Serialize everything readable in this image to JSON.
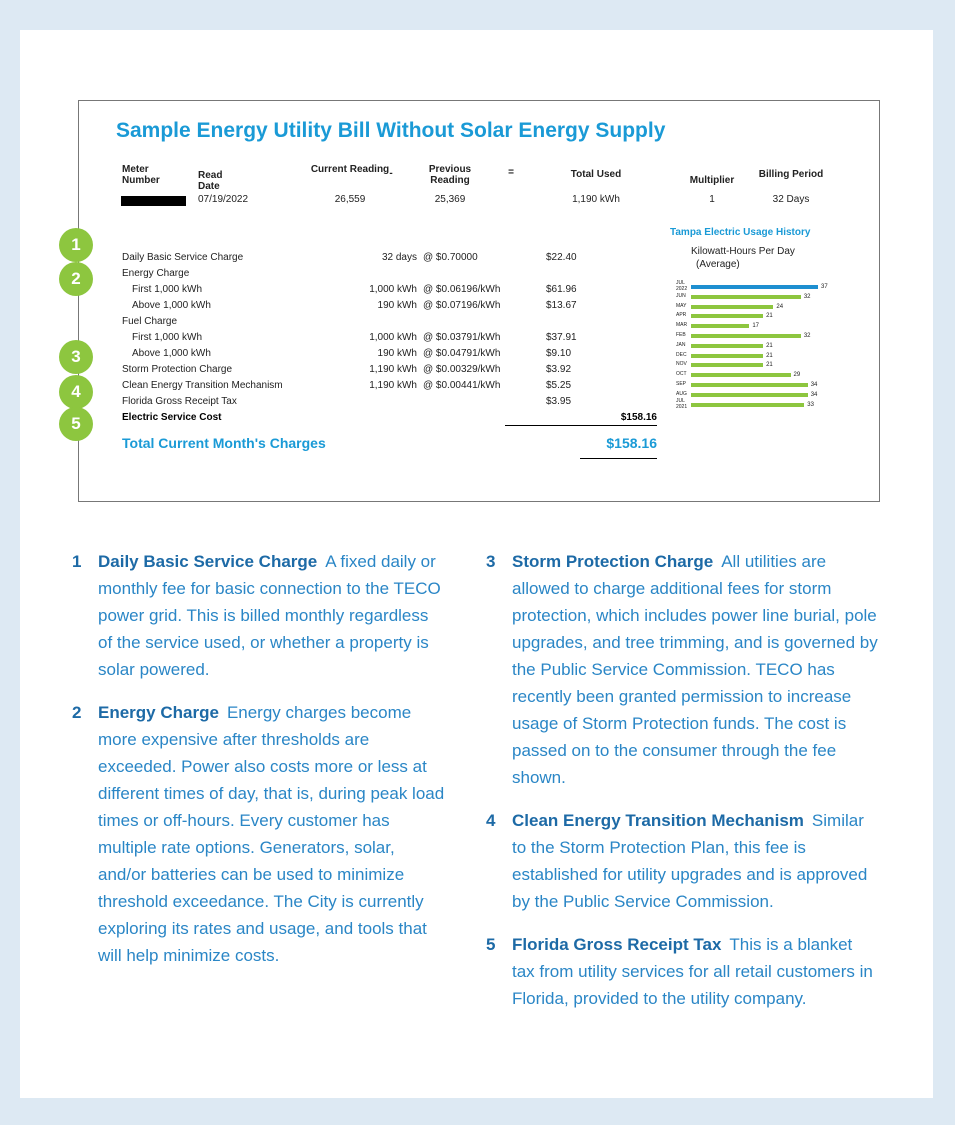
{
  "bill": {
    "title": "Sample Energy Utility Bill Without Solar Energy Supply",
    "header": [
      {
        "label": "Meter Number"
      },
      {
        "label": "Read Date",
        "value": "07/19/2022"
      },
      {
        "label": "Current Reading",
        "value": "26,559"
      },
      {
        "label": "-"
      },
      {
        "label": "Previous Reading",
        "value": "25,369"
      },
      {
        "label": "="
      },
      {
        "label": "Total Used",
        "value": "1,190 kWh"
      },
      {
        "label": "Multiplier",
        "value": "1"
      },
      {
        "label": "Billing Period",
        "value": "32 Days"
      }
    ],
    "charges": [
      [
        "Daily Basic Service Charge",
        "32 days",
        "@ $0.70000",
        "$22.40"
      ],
      [
        "Energy Charge"
      ],
      [
        "First 1,000 kWh",
        "1,000 kWh",
        "@ $0.06196/kWh",
        "$61.96"
      ],
      [
        "Above 1,000 kWh",
        "190 kWh",
        "@ $0.07196/kWh",
        "$13.67"
      ],
      [
        "Fuel Charge"
      ],
      [
        "First 1,000 kWh",
        "1,000 kWh",
        "@ $0.03791/kWh",
        "$37.91"
      ],
      [
        "Above 1,000 kWh",
        "190 kWh",
        "@ $0.04791/kWh",
        "$9.10"
      ],
      [
        "Storm Protection Charge",
        "1,190 kWh",
        "@ $0.00329/kWh",
        "$3.92"
      ],
      [
        "Clean Energy Transition Mechanism",
        "1,190 kWh",
        "@ $0.00441/kWh",
        "$5.25"
      ],
      [
        "Florida Gross Receipt Tax",
        "$3.95"
      ]
    ],
    "subtotal_label": "Electric Service Cost",
    "subtotal": "$158.16",
    "total_label": "Total Current Month's Charges",
    "total": "$158.16",
    "markers": [
      "1",
      "2",
      "3",
      "4",
      "5"
    ],
    "usage_history": {
      "title": "Tampa Electric Usage History",
      "subtitle": "Kilowatt-Hours Per Day",
      "subtitle2": "(Average)",
      "rows": [
        {
          "label": "JUL",
          "year": "2022",
          "value": 37
        },
        {
          "label": "JUN",
          "value": 32
        },
        {
          "label": "MAY",
          "value": 24
        },
        {
          "label": "APR",
          "value": 21
        },
        {
          "label": "MAR",
          "value": 17
        },
        {
          "label": "FEB",
          "value": 32
        },
        {
          "label": "JAN",
          "value": 21
        },
        {
          "label": "DEC",
          "value": 21
        },
        {
          "label": "NOV",
          "value": 21
        },
        {
          "label": "OCT",
          "value": 29
        },
        {
          "label": "SEP",
          "value": 34
        },
        {
          "label": "AUG",
          "value": 34
        },
        {
          "label": "JUL",
          "year": "2021",
          "value": 33
        }
      ]
    }
  },
  "notes": [
    {
      "number": "1",
      "heading": "Daily Basic Service Charge",
      "text": "A fixed daily or monthly fee for basic connection to the TECO power grid. This is billed monthly regardless of the service used, or whether a property is solar powered."
    },
    {
      "number": "2",
      "heading": "Energy Charge",
      "text": "Energy charges become more expensive after thresholds are exceeded. Power also costs more or less at different times of day, that is, during peak load times or off-hours. Every customer has multiple rate options. Generators, solar, and/or batteries can be used to minimize threshold exceedance. The City is currently exploring its rates and usage, and tools that will help minimize costs."
    },
    {
      "number": "3",
      "heading": "Storm Protection Charge",
      "text": "All utilities are allowed to charge additional fees for storm protection, which includes power line burial, pole upgrades, and tree trimming, and is governed by the Public Service Commission. TECO has recently been granted permission to increase usage of Storm Protection funds. The cost is passed on to the consumer through the fee shown."
    },
    {
      "number": "4",
      "heading": "Clean Energy Transition Mechanism",
      "text": "Similar to the Storm Protection Plan, this fee is established for utility upgrades and is approved by the Public Service Commission."
    },
    {
      "number": "5",
      "heading": "Florida Gross Receipt Tax",
      "text": "This is a blanket tax from utility services for all retail customers in Florida, provided to the utility company."
    }
  ]
}
